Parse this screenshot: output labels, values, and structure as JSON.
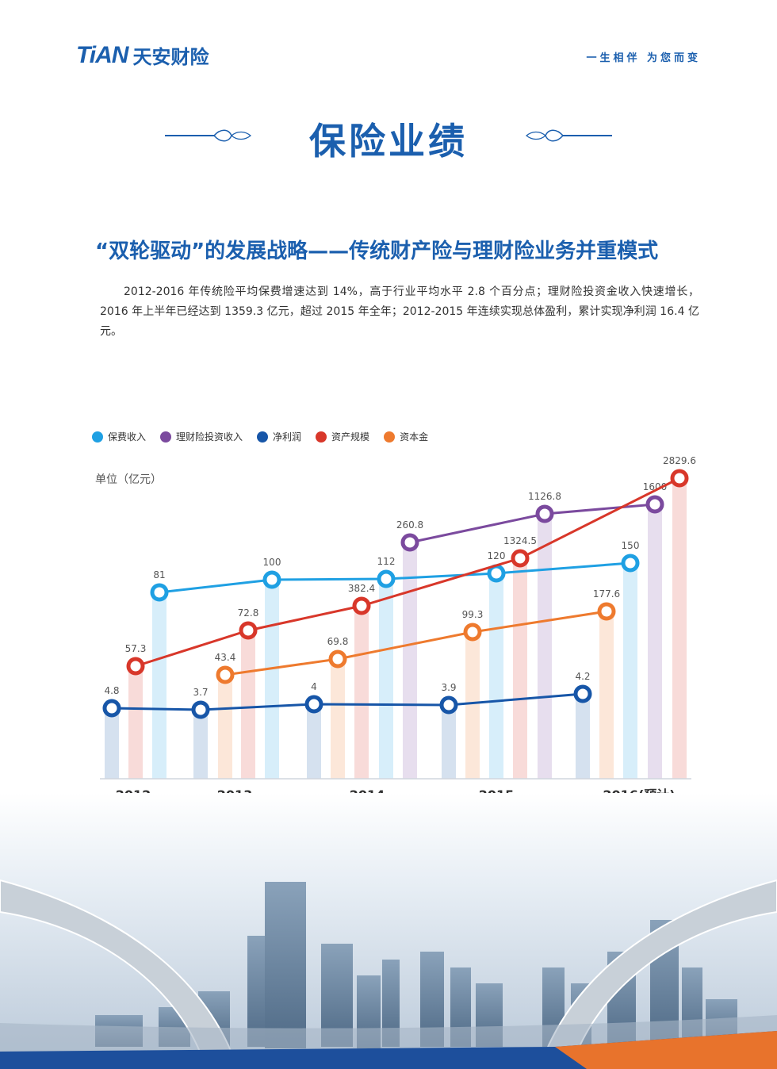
{
  "header": {
    "logo_mark": "TiAN",
    "logo_name": "天安财险",
    "slogan": "一生相伴  为您而变"
  },
  "page_title": "保险业绩",
  "subtitle": "“双轮驱动”的发展战略——传统财产险与理财险业务并重模式",
  "paragraph": "2012-2016 年传统险平均保费增速达到 14%，高于行业平均水平 2.8 个百分点；理财险投资金收入快速增长，2016 年上半年已经达到 1359.3 亿元，超过 2015 年全年；2012-2015 年连续实现总体盈利，累计实现净利润 16.4 亿元。",
  "colors": {
    "brand": "#1b5fae",
    "premium": "#1fa0e3",
    "investment": "#7b4a9e",
    "net_profit": "#1756a8",
    "assets": "#d8372a",
    "capital": "#ee7a2e"
  },
  "chart_data": {
    "type": "line",
    "unit_label": "单位（亿元）",
    "categories": [
      "2012",
      "2013",
      "2014",
      "2015",
      "2016(预计)"
    ],
    "series": [
      {
        "name": "保费收入",
        "key": "premium",
        "values": [
          81,
          100,
          112,
          120,
          150
        ]
      },
      {
        "name": "理财险投资收入",
        "key": "investment",
        "values": [
          null,
          null,
          260.8,
          1126.8,
          1600
        ]
      },
      {
        "name": "净利润",
        "key": "net_profit",
        "values": [
          4.8,
          3.7,
          4,
          3.9,
          4.2
        ]
      },
      {
        "name": "资产规模",
        "key": "assets",
        "values": [
          57.3,
          72.8,
          382.4,
          1324.5,
          2829.6
        ]
      },
      {
        "name": "资本金",
        "key": "capital",
        "values": [
          null,
          43.4,
          69.8,
          99.3,
          177.6
        ]
      }
    ],
    "legend_position": "top-left",
    "grid": false
  }
}
